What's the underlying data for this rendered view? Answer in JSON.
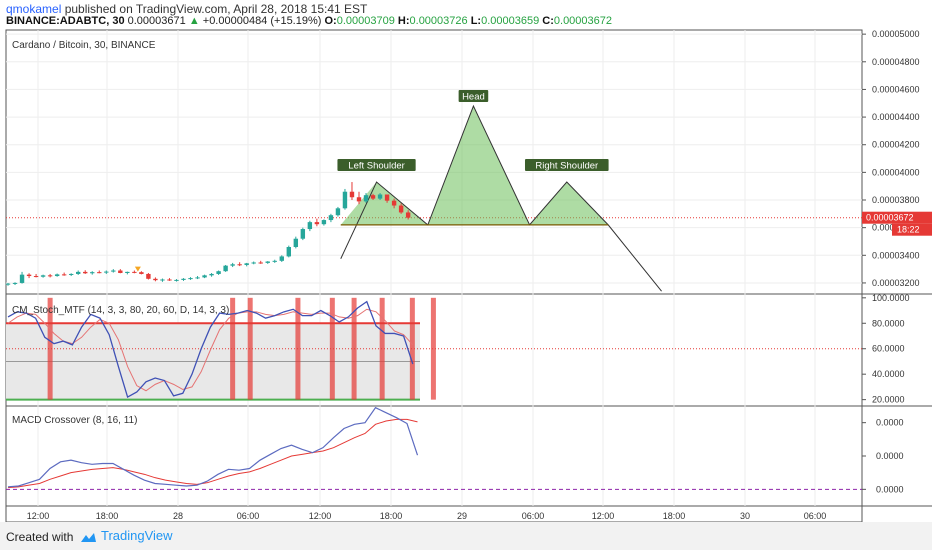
{
  "header": {
    "user": "qmokamel",
    "published": "published on TradingView.com, April 28, 2018 15:41 EST",
    "symbol": "BINANCE:ADABTC, 30",
    "price": "0.00003671",
    "change": "+0.00000484 (+15.19%)",
    "o_label": "O:",
    "o": "0.00003709",
    "h_label": "H:",
    "h": "0.00003726",
    "l_label": "L:",
    "l": "0.00003659",
    "c_label": "C:",
    "c": "0.00003672"
  },
  "footer": {
    "created_with": "Created with",
    "brand": "TradingView"
  },
  "chart_data": {
    "type": "candlestick",
    "title": "Cardano / Bitcoin, 30, BINANCE",
    "price_axis_labels": [
      "0.00005000",
      "0.00004800",
      "0.00004600",
      "0.00004400",
      "0.00004200",
      "0.00004000",
      "0.00003800",
      "0.00003600",
      "0.00003400",
      "0.00003200"
    ],
    "price_axis_values": [
      5000,
      4800,
      4600,
      4400,
      4200,
      4000,
      3800,
      3600,
      3400,
      3200
    ],
    "price_unit_note": "",
    "ylim": [
      3120,
      5030
    ],
    "current_price_label": "0.00003672",
    "current_price": 3672,
    "countdown": "18:22",
    "x_ticks": [
      "12:00",
      "18:00",
      "28",
      "06:00",
      "12:00",
      "18:00",
      "29",
      "06:00",
      "12:00",
      "18:00",
      "30",
      "06:00"
    ],
    "candles": [
      [
        3190,
        3200,
        3180,
        3195
      ],
      [
        3195,
        3205,
        3185,
        3200
      ],
      [
        3200,
        3280,
        3195,
        3260
      ],
      [
        3260,
        3270,
        3235,
        3250
      ],
      [
        3250,
        3265,
        3240,
        3245
      ],
      [
        3245,
        3260,
        3238,
        3255
      ],
      [
        3255,
        3265,
        3240,
        3250
      ],
      [
        3250,
        3268,
        3245,
        3262
      ],
      [
        3262,
        3275,
        3252,
        3258
      ],
      [
        3258,
        3270,
        3250,
        3265
      ],
      [
        3265,
        3290,
        3258,
        3280
      ],
      [
        3280,
        3292,
        3265,
        3270
      ],
      [
        3270,
        3285,
        3260,
        3278
      ],
      [
        3278,
        3290,
        3270,
        3275
      ],
      [
        3275,
        3290,
        3265,
        3282
      ],
      [
        3282,
        3300,
        3275,
        3290
      ],
      [
        3290,
        3300,
        3270,
        3272
      ],
      [
        3272,
        3282,
        3262,
        3280
      ],
      [
        3280,
        3290,
        3270,
        3278
      ],
      [
        3278,
        3285,
        3262,
        3265
      ],
      [
        3265,
        3272,
        3225,
        3230
      ],
      [
        3230,
        3240,
        3212,
        3220
      ],
      [
        3220,
        3232,
        3208,
        3225
      ],
      [
        3225,
        3235,
        3215,
        3218
      ],
      [
        3218,
        3228,
        3210,
        3222
      ],
      [
        3222,
        3235,
        3215,
        3230
      ],
      [
        3230,
        3242,
        3222,
        3235
      ],
      [
        3235,
        3250,
        3228,
        3240
      ],
      [
        3240,
        3260,
        3235,
        3255
      ],
      [
        3255,
        3272,
        3245,
        3265
      ],
      [
        3265,
        3290,
        3258,
        3285
      ],
      [
        3285,
        3330,
        3280,
        3325
      ],
      [
        3325,
        3345,
        3315,
        3335
      ],
      [
        3335,
        3350,
        3322,
        3330
      ],
      [
        3330,
        3345,
        3320,
        3342
      ],
      [
        3342,
        3355,
        3335,
        3348
      ],
      [
        3348,
        3360,
        3338,
        3345
      ],
      [
        3345,
        3358,
        3338,
        3355
      ],
      [
        3355,
        3368,
        3345,
        3360
      ],
      [
        3360,
        3400,
        3352,
        3392
      ],
      [
        3392,
        3470,
        3385,
        3460
      ],
      [
        3460,
        3535,
        3450,
        3520
      ],
      [
        3520,
        3600,
        3510,
        3590
      ],
      [
        3590,
        3650,
        3575,
        3640
      ],
      [
        3640,
        3665,
        3610,
        3625
      ],
      [
        3625,
        3660,
        3615,
        3655
      ],
      [
        3655,
        3700,
        3640,
        3690
      ],
      [
        3690,
        3750,
        3680,
        3740
      ],
      [
        3740,
        3880,
        3730,
        3860
      ],
      [
        3860,
        3930,
        3800,
        3820
      ],
      [
        3820,
        3860,
        3770,
        3790
      ],
      [
        3790,
        3850,
        3780,
        3835
      ],
      [
        3835,
        3845,
        3800,
        3810
      ],
      [
        3810,
        3850,
        3800,
        3840
      ],
      [
        3840,
        3830,
        3780,
        3795
      ],
      [
        3795,
        3810,
        3740,
        3760
      ],
      [
        3760,
        3775,
        3700,
        3710
      ],
      [
        3710,
        3726,
        3659,
        3672
      ]
    ],
    "pattern": {
      "labels": [
        "Left Shoulder",
        "Head",
        "Right Shoulder"
      ],
      "points": [
        [
          47.4,
          3375
        ],
        [
          52.5,
          3930
        ],
        [
          59.8,
          3620
        ],
        [
          66.3,
          4480
        ],
        [
          74.3,
          3620
        ],
        [
          79.6,
          3930
        ],
        [
          85.5,
          3620
        ],
        [
          93.1,
          3140
        ]
      ],
      "neckline": [
        [
          47.4,
          3620
        ],
        [
          85.5,
          3620
        ]
      ]
    },
    "stoch": {
      "title": "CM_Stoch_MTF (14, 3, 3, 80, 20, 60, D, 14, 3, 3)",
      "axis_labels": [
        "100.0000",
        "80.0000",
        "60.0000",
        "40.0000",
        "20.0000"
      ],
      "axis_values": [
        100,
        80,
        60,
        40,
        20
      ],
      "ylim": [
        15,
        103
      ],
      "levels": [
        80,
        50,
        20
      ],
      "k": [
        85,
        89,
        88,
        84,
        69,
        64,
        66,
        63,
        77,
        87,
        84,
        71,
        46,
        22,
        26,
        34,
        37,
        35,
        23,
        25,
        40,
        60,
        77,
        88,
        87,
        88,
        90,
        88,
        84,
        86,
        89,
        91,
        86,
        86,
        90,
        86,
        81,
        85,
        92,
        97,
        78,
        72,
        72,
        70,
        48
      ],
      "d": [
        80,
        85,
        88,
        87,
        80,
        72,
        66,
        64,
        69,
        77,
        83,
        80,
        67,
        46,
        31,
        27,
        32,
        35,
        32,
        28,
        30,
        42,
        59,
        75,
        84,
        88,
        89,
        89,
        87,
        86,
        87,
        89,
        88,
        87,
        88,
        88,
        85,
        84,
        86,
        91,
        89,
        82,
        74,
        71,
        63
      ],
      "signals": [
        6,
        32,
        34.5,
        41.3,
        46.2,
        49.3,
        53.3,
        57.6,
        60.6
      ]
    },
    "macd": {
      "title": "MACD Crossover (8, 16, 11)",
      "axis_labels": [
        "0.0000",
        "0.0000",
        "0.0000"
      ],
      "axis_values": [
        30,
        -10,
        -50
      ],
      "ylim": [
        -70,
        50
      ],
      "macd": [
        -47,
        -46,
        -42,
        -38,
        -25,
        -17,
        -15,
        -18,
        -20,
        -19,
        -19,
        -26,
        -33,
        -39,
        -43,
        -44,
        -45,
        -46,
        -45,
        -40,
        -32,
        -26,
        -27,
        -25,
        -15,
        -8,
        -1,
        3,
        -2,
        -6,
        0,
        12,
        23,
        28,
        30,
        48,
        42,
        36,
        29,
        -9
      ],
      "signal": [
        -48,
        -47,
        -45,
        -43,
        -38,
        -34,
        -30,
        -28,
        -26,
        -25,
        -24,
        -26,
        -29,
        -32,
        -36,
        -39,
        -41,
        -43,
        -44,
        -42,
        -38,
        -34,
        -31,
        -29,
        -25,
        -20,
        -15,
        -10,
        -8,
        -6,
        -4,
        0,
        6,
        12,
        17,
        28,
        32,
        34,
        34,
        31
      ]
    }
  }
}
